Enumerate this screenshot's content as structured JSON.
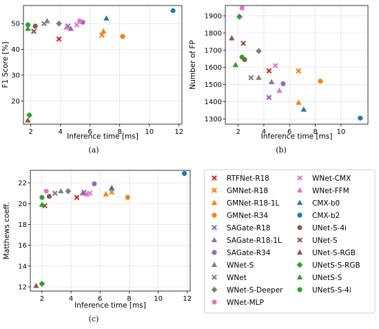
{
  "legend": [
    {
      "name": "RTFNet-R18",
      "color": "#d62728",
      "marker": "x"
    },
    {
      "name": "GMNet-R18",
      "color": "#ff7f0e",
      "marker": "x"
    },
    {
      "name": "GMNet-R18-1L",
      "color": "#ff7f0e",
      "marker": "triangle"
    },
    {
      "name": "GMNet-R34",
      "color": "#ff7f0e",
      "marker": "circle"
    },
    {
      "name": "SAGate-R18",
      "color": "#9467bd",
      "marker": "x"
    },
    {
      "name": "SAGate-R18-1L",
      "color": "#9467bd",
      "marker": "triangle"
    },
    {
      "name": "SAGate-R34",
      "color": "#9467bd",
      "marker": "circle"
    },
    {
      "name": "WNet-S",
      "color": "#7f7f7f",
      "marker": "triangle"
    },
    {
      "name": "WNet",
      "color": "#7f7f7f",
      "marker": "x"
    },
    {
      "name": "WNet-S-Deeper",
      "color": "#7f7f7f",
      "marker": "diamond"
    },
    {
      "name": "WNet-MLP",
      "color": "#e377c2",
      "marker": "circle"
    },
    {
      "name": "WNet-CMX",
      "color": "#e377c2",
      "marker": "x"
    },
    {
      "name": "WNet-FFM",
      "color": "#e377c2",
      "marker": "triangle"
    },
    {
      "name": "CMX-b0",
      "color": "#1f77b4",
      "marker": "triangle"
    },
    {
      "name": "CMX-b2",
      "color": "#1f77b4",
      "marker": "circle"
    },
    {
      "name": "UNet-S-4i",
      "color": "#8c564b",
      "marker": "circle"
    },
    {
      "name": "UNet-S",
      "color": "#8c564b",
      "marker": "x"
    },
    {
      "name": "UNet-S-RGB",
      "color": "#8c564b",
      "marker": "triangle"
    },
    {
      "name": "UNetS-S-RGB",
      "color": "#2ca02c",
      "marker": "diamond"
    },
    {
      "name": "UNetS-S",
      "color": "#2ca02c",
      "marker": "triangle"
    },
    {
      "name": "UNetS-S-4i",
      "color": "#2ca02c",
      "marker": "circle"
    }
  ],
  "chart_data": [
    {
      "type": "scatter",
      "caption": "(a)",
      "xlabel": "Inference time [ms]",
      "ylabel": "F1 Score [%]",
      "xlim": [
        1.5,
        12.2
      ],
      "ylim": [
        11,
        57
      ],
      "xticks": [
        2,
        4,
        6,
        8,
        10,
        12
      ],
      "yticks": [
        20,
        30,
        40,
        50
      ],
      "grid": true,
      "points": [
        {
          "series": "RTFNet-R18",
          "x": 3.9,
          "y": 44
        },
        {
          "series": "GMNet-R18",
          "x": 6.8,
          "y": 45.5
        },
        {
          "series": "GMNet-R18-1L",
          "x": 6.9,
          "y": 47
        },
        {
          "series": "GMNet-R34",
          "x": 8.2,
          "y": 45
        },
        {
          "series": "SAGate-R18",
          "x": 4.5,
          "y": 49
        },
        {
          "series": "SAGate-R18-1L",
          "x": 4.7,
          "y": 48
        },
        {
          "series": "SAGate-R34",
          "x": 5.5,
          "y": 50.5
        },
        {
          "series": "WNet-S",
          "x": 3.1,
          "y": 51
        },
        {
          "series": "WNet",
          "x": 2.9,
          "y": 50
        },
        {
          "series": "WNet-S-Deeper",
          "x": 3.9,
          "y": 50
        },
        {
          "series": "WNet-MLP",
          "x": 5.3,
          "y": 51
        },
        {
          "series": "WNet-CMX",
          "x": 5.1,
          "y": 49.5
        },
        {
          "series": "WNet-FFM",
          "x": 4.4,
          "y": 48.5
        },
        {
          "series": "CMX-b0",
          "x": 7.1,
          "y": 52
        },
        {
          "series": "CMX-b2",
          "x": 11.6,
          "y": 55
        },
        {
          "series": "UNet-S-4i",
          "x": 2.3,
          "y": 49
        },
        {
          "series": "UNet-S",
          "x": 2.2,
          "y": 47
        },
        {
          "series": "UNet-S-RGB",
          "x": 1.8,
          "y": 12.5
        },
        {
          "series": "UNetS-S-RGB",
          "x": 1.9,
          "y": 14.5
        },
        {
          "series": "UNetS-S",
          "x": 1.8,
          "y": 48
        },
        {
          "series": "UNetS-S-4i",
          "x": 1.8,
          "y": 49.5
        }
      ]
    },
    {
      "type": "scatter",
      "caption": "(b)",
      "xlabel": "Inference time [ms]",
      "ylabel": "Number of FP",
      "xlim": [
        1,
        12.1
      ],
      "ylim": [
        1270,
        1960
      ],
      "xticks": [
        2,
        4,
        6,
        8,
        10
      ],
      "yticks": [
        1300,
        1400,
        1500,
        1600,
        1700,
        1800,
        1900
      ],
      "grid": true,
      "points": [
        {
          "series": "RTFNet-R18",
          "x": 4.4,
          "y": 1580
        },
        {
          "series": "GMNet-R18",
          "x": 6.7,
          "y": 1580
        },
        {
          "series": "GMNet-R18-1L",
          "x": 6.7,
          "y": 1395
        },
        {
          "series": "GMNet-R34",
          "x": 8.4,
          "y": 1520
        },
        {
          "series": "SAGate-R18",
          "x": 4.4,
          "y": 1425
        },
        {
          "series": "SAGate-R18-1L",
          "x": 4.6,
          "y": 1515
        },
        {
          "series": "SAGate-R34",
          "x": 5.5,
          "y": 1505
        },
        {
          "series": "WNet-S",
          "x": 3.6,
          "y": 1540
        },
        {
          "series": "WNet",
          "x": 3,
          "y": 1540
        },
        {
          "series": "WNet-S-Deeper",
          "x": 3.6,
          "y": 1695
        },
        {
          "series": "WNet-MLP",
          "x": 2.3,
          "y": 1945
        },
        {
          "series": "WNet-CMX",
          "x": 4.9,
          "y": 1610
        },
        {
          "series": "WNet-FFM",
          "x": 5.2,
          "y": 1465
        },
        {
          "series": "CMX-b0",
          "x": 7.1,
          "y": 1355
        },
        {
          "series": "CMX-b2",
          "x": 11.5,
          "y": 1305
        },
        {
          "series": "UNet-S-4i",
          "x": 2.5,
          "y": 1645
        },
        {
          "series": "UNet-S",
          "x": 2.4,
          "y": 1740
        },
        {
          "series": "UNet-S-RGB",
          "x": 1.5,
          "y": 1770
        },
        {
          "series": "UNetS-S-RGB",
          "x": 2.1,
          "y": 1895
        },
        {
          "series": "UNetS-S",
          "x": 1.8,
          "y": 1615
        },
        {
          "series": "UNetS-S-4i",
          "x": 2.3,
          "y": 1660
        }
      ]
    },
    {
      "type": "scatter",
      "caption": "(c)",
      "xlabel": "Inference time [ms]",
      "ylabel": "Matthews coeff.",
      "xlim": [
        1.2,
        12.2
      ],
      "ylim": [
        11.6,
        23.2
      ],
      "xticks": [
        2,
        4,
        6,
        8,
        10,
        12
      ],
      "yticks": [
        12,
        14,
        16,
        18,
        20,
        22
      ],
      "grid": true,
      "points": [
        {
          "series": "RTFNet-R18",
          "x": 4.4,
          "y": 20.6
        },
        {
          "series": "GMNet-R18",
          "x": 6.8,
          "y": 21.1
        },
        {
          "series": "GMNet-R18-1L",
          "x": 6.4,
          "y": 20.9
        },
        {
          "series": "GMNet-R34",
          "x": 7.9,
          "y": 20.6
        },
        {
          "series": "SAGate-R18",
          "x": 4.9,
          "y": 21.1
        },
        {
          "series": "SAGate-R18-1L",
          "x": 4.8,
          "y": 21.0
        },
        {
          "series": "SAGate-R34",
          "x": 5.6,
          "y": 21.9
        },
        {
          "series": "WNet-S",
          "x": 3.3,
          "y": 21.2
        },
        {
          "series": "WNet",
          "x": 2.9,
          "y": 21.0
        },
        {
          "series": "WNet-S-Deeper",
          "x": 3.8,
          "y": 21.2
        },
        {
          "series": "WNet-MLP",
          "x": 2.3,
          "y": 21.2
        },
        {
          "series": "WNet-CMX",
          "x": 5.3,
          "y": 21.0
        },
        {
          "series": "WNet-FFM",
          "x": 5.1,
          "y": 20.9
        },
        {
          "series": "CMX-b0",
          "x": 6.8,
          "y": 21.5
        },
        {
          "series": "CMX-b2",
          "x": 11.8,
          "y": 22.9
        },
        {
          "series": "UNet-S-4i",
          "x": 2.5,
          "y": 20.7
        },
        {
          "series": "UNet-S",
          "x": 2.2,
          "y": 19.8
        },
        {
          "series": "UNet-S-RGB",
          "x": 1.6,
          "y": 12.1
        },
        {
          "series": "UNetS-S-RGB",
          "x": 2.0,
          "y": 12.3
        },
        {
          "series": "UNetS-S",
          "x": 2.0,
          "y": 19.9
        },
        {
          "series": "UNetS-S-4i",
          "x": 2.0,
          "y": 20.6
        }
      ]
    }
  ]
}
